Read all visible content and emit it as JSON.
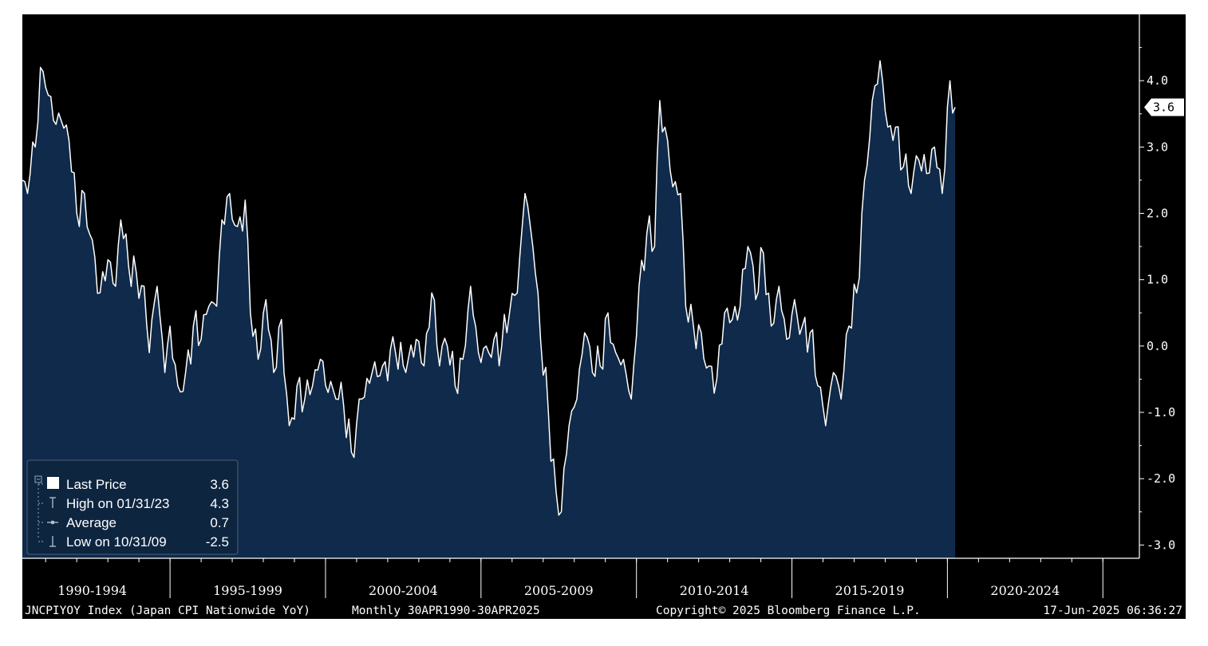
{
  "chart_data": {
    "type": "area",
    "y_axis": {
      "ticks": [
        4.0,
        3.0,
        2.0,
        1.0,
        0.0,
        -1.0,
        -2.0,
        -3.0
      ],
      "tick_labels": [
        "4.0",
        "3.0",
        "2.0",
        "1.0",
        "0.0",
        "-1.0",
        "-2.0",
        "-3.0"
      ],
      "range": [
        -3.2,
        5.0
      ],
      "position": "right"
    },
    "x_axis": {
      "range": [
        "1990-04",
        "2025-04"
      ],
      "period_labels": [
        "1990-1994",
        "1995-1999",
        "2000-2004",
        "2005-2009",
        "2010-2014",
        "2015-2019",
        "2020-2024"
      ],
      "period_starts": [
        "1990-01",
        "1995-01",
        "2000-01",
        "2005-01",
        "2010-01",
        "2015-01",
        "2020-01"
      ],
      "period_boundaries": [
        "1995-01",
        "2000-01",
        "2005-01",
        "2010-01",
        "2015-01",
        "2020-01",
        "2025-01"
      ]
    },
    "last_value_label": "3.6",
    "grid": false,
    "legend": {
      "placement": "bottom-left",
      "entries": [
        {
          "icon": "square",
          "label": "Last Price",
          "value": "3.6"
        },
        {
          "icon": "high-marker",
          "label": "High on 01/31/23",
          "value": "4.3"
        },
        {
          "icon": "average-marker",
          "label": "Average",
          "value": "0.7"
        },
        {
          "icon": "low-marker",
          "label": "Low on 10/31/09",
          "value": "-2.5"
        }
      ]
    },
    "series": [
      {
        "frequency": "monthly",
        "points": [
          [
            "1990-04",
            2.5
          ],
          [
            "1990-06",
            2.3
          ],
          [
            "1990-09",
            3.0
          ],
          [
            "1990-11",
            4.2
          ],
          [
            "1991-01",
            3.9
          ],
          [
            "1991-04",
            3.4
          ],
          [
            "1991-07",
            3.4
          ],
          [
            "1991-10",
            3.1
          ],
          [
            "1992-01",
            2.0
          ],
          [
            "1992-04",
            2.3
          ],
          [
            "1992-07",
            1.6
          ],
          [
            "1992-10",
            0.8
          ],
          [
            "1993-01",
            1.3
          ],
          [
            "1993-04",
            0.9
          ],
          [
            "1993-06",
            1.9
          ],
          [
            "1993-09",
            1.2
          ],
          [
            "1993-12",
            1.1
          ],
          [
            "1994-03",
            0.9
          ],
          [
            "1994-05",
            -0.1
          ],
          [
            "1994-08",
            0.9
          ],
          [
            "1994-11",
            -0.4
          ],
          [
            "1995-01",
            0.3
          ],
          [
            "1995-04",
            -0.6
          ],
          [
            "1995-07",
            -0.4
          ],
          [
            "1995-10",
            0.3
          ],
          [
            "1996-01",
            0.1
          ],
          [
            "1996-04",
            0.6
          ],
          [
            "1996-07",
            0.6
          ],
          [
            "1996-09",
            1.9
          ],
          [
            "1996-12",
            2.3
          ],
          [
            "1997-03",
            1.8
          ],
          [
            "1997-06",
            2.2
          ],
          [
            "1997-08",
            0.5
          ],
          [
            "1997-11",
            -0.2
          ],
          [
            "1998-02",
            0.7
          ],
          [
            "1998-05",
            -0.4
          ],
          [
            "1998-08",
            0.4
          ],
          [
            "1998-11",
            -1.2
          ],
          [
            "1999-02",
            -0.6
          ],
          [
            "1999-05",
            -0.8
          ],
          [
            "1999-08",
            -0.6
          ],
          [
            "1999-11",
            -0.2
          ],
          [
            "2000-02",
            -0.7
          ],
          [
            "2000-05",
            -0.8
          ],
          [
            "2000-08",
            -0.9
          ],
          [
            "2000-11",
            -1.6
          ],
          [
            "2001-03",
            -0.8
          ],
          [
            "2001-07",
            -0.4
          ],
          [
            "2001-11",
            -0.3
          ],
          [
            "2002-04",
            -0.1
          ],
          [
            "2002-08",
            -0.4
          ],
          [
            "2002-12",
            0.1
          ],
          [
            "2003-03",
            -0.3
          ],
          [
            "2003-06",
            0.8
          ],
          [
            "2003-09",
            -0.3
          ],
          [
            "2003-12",
            0.0
          ],
          [
            "2004-03",
            -0.6
          ],
          [
            "2004-06",
            -0.2
          ],
          [
            "2004-09",
            0.9
          ],
          [
            "2004-12",
            -0.1
          ],
          [
            "2005-03",
            0.0
          ],
          [
            "2005-06",
            0.1
          ],
          [
            "2005-09",
            0.0
          ],
          [
            "2005-12",
            0.5
          ],
          [
            "2006-03",
            0.8
          ],
          [
            "2006-06",
            2.3
          ],
          [
            "2006-09",
            1.5
          ],
          [
            "2006-12",
            0.1
          ],
          [
            "2007-03",
            -1.0
          ],
          [
            "2007-06",
            -2.2
          ],
          [
            "2007-08",
            -2.5
          ],
          [
            "2007-11",
            -1.2
          ],
          [
            "2008-02",
            -0.8
          ],
          [
            "2008-05",
            0.2
          ],
          [
            "2008-08",
            -0.4
          ],
          [
            "2008-11",
            -0.3
          ],
          [
            "2009-02",
            0.5
          ],
          [
            "2009-05",
            -0.1
          ],
          [
            "2009-08",
            -0.2
          ],
          [
            "2009-11",
            -0.8
          ],
          [
            "2010-02",
            0.9
          ],
          [
            "2010-05",
            1.7
          ],
          [
            "2010-08",
            1.5
          ],
          [
            "2010-10",
            3.7
          ],
          [
            "2011-01",
            3.1
          ],
          [
            "2011-03",
            2.4
          ],
          [
            "2011-06",
            2.3
          ],
          [
            "2011-08",
            0.6
          ],
          [
            "2011-11",
            0.3
          ],
          [
            "2012-02",
            0.2
          ],
          [
            "2012-05",
            -0.3
          ],
          [
            "2012-08",
            -0.5
          ],
          [
            "2012-11",
            0.5
          ],
          [
            "2013-02",
            0.4
          ],
          [
            "2013-05",
            0.6
          ],
          [
            "2013-08",
            1.5
          ],
          [
            "2013-11",
            0.7
          ],
          [
            "2014-02",
            1.4
          ],
          [
            "2014-05",
            0.3
          ],
          [
            "2014-08",
            0.9
          ],
          [
            "2014-11",
            0.1
          ],
          [
            "2015-02",
            0.7
          ],
          [
            "2015-05",
            0.3
          ],
          [
            "2015-08",
            0.2
          ],
          [
            "2015-11",
            -0.6
          ],
          [
            "2016-02",
            -1.2
          ],
          [
            "2016-05",
            -0.4
          ],
          [
            "2016-08",
            -0.8
          ],
          [
            "2016-11",
            0.3
          ],
          [
            "2017-02",
            0.8
          ],
          [
            "2017-05",
            2.5
          ],
          [
            "2017-08",
            3.7
          ],
          [
            "2017-11",
            4.3
          ],
          [
            "2018-02",
            3.3
          ],
          [
            "2018-05",
            3.3
          ],
          [
            "2018-08",
            2.7
          ],
          [
            "2018-11",
            2.3
          ],
          [
            "2019-02",
            2.8
          ],
          [
            "2019-05",
            2.6
          ],
          [
            "2019-08",
            3.0
          ],
          [
            "2019-11",
            2.3
          ],
          [
            "2020-02",
            4.0
          ],
          [
            "2020-04",
            3.6
          ]
        ]
      }
    ]
  },
  "footer": {
    "ticker": "JNCPIYOY Index (Japan CPI Nationwide YoY)",
    "period": "Monthly 30APR1990-30APR2025",
    "copyright": "Copyright© 2025 Bloomberg Finance L.P.",
    "timestamp": "17-Jun-2025 06:36:27"
  },
  "colors": {
    "background": "#000000",
    "area_fill": "#0f2a4a",
    "line": "#ffffff",
    "text": "#ffffff",
    "legend_bg": "#0e2540"
  }
}
